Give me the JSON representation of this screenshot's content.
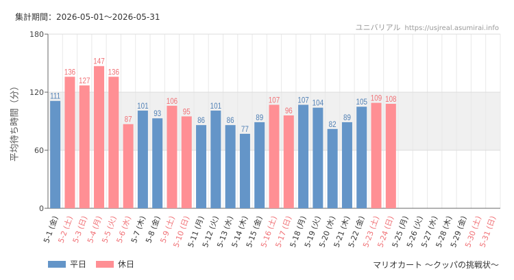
{
  "header": {
    "period": "集計期間：2026-05-01～2026-05-31",
    "site_name": "ユニバリアル",
    "site_url": "https://usjreal.asumirai.info"
  },
  "footer": {
    "attraction": "マリオカート ～クッパの挑戦状～"
  },
  "colors": {
    "weekday": "#6495c8",
    "holiday": "#ff8f94",
    "weekday_label": "#4f7fb4",
    "holiday_label": "#f07075",
    "axis_text": "#333333",
    "band": "#f0f0f0"
  },
  "chart_data": {
    "type": "bar",
    "ylabel": "平均待ち時間（分）",
    "ylim": [
      0,
      180
    ],
    "yticks": [
      0,
      60,
      120,
      180
    ],
    "band": [
      60,
      120
    ],
    "grid": true,
    "legend_position": "bottom-left",
    "series": [
      {
        "name": "平日",
        "key": "weekday"
      },
      {
        "name": "休日",
        "key": "holiday"
      }
    ],
    "categories": [
      "5-1 (金)",
      "5-2 (土)",
      "5-3 (日)",
      "5-4 (月)",
      "5-5 (火)",
      "5-6 (水)",
      "5-7 (木)",
      "5-8 (金)",
      "5-9 (土)",
      "5-10 (日)",
      "5-11 (月)",
      "5-12 (火)",
      "5-13 (水)",
      "5-14 (木)",
      "5-15 (金)",
      "5-16 (土)",
      "5-17 (日)",
      "5-18 (月)",
      "5-19 (火)",
      "5-20 (水)",
      "5-21 (木)",
      "5-22 (金)",
      "5-23 (土)",
      "5-24 (日)",
      "5-25 (月)",
      "5-26 (火)",
      "5-27 (水)",
      "5-28 (木)",
      "5-29 (金)",
      "5-30 (土)",
      "5-31 (日)"
    ],
    "values": [
      111,
      136,
      127,
      147,
      136,
      87,
      101,
      93,
      106,
      95,
      86,
      101,
      86,
      77,
      89,
      107,
      96,
      107,
      104,
      82,
      89,
      105,
      109,
      108,
      null,
      null,
      null,
      null,
      null,
      null,
      null
    ],
    "day_type": [
      "weekday",
      "holiday",
      "holiday",
      "holiday",
      "holiday",
      "holiday",
      "weekday",
      "weekday",
      "holiday",
      "holiday",
      "weekday",
      "weekday",
      "weekday",
      "weekday",
      "weekday",
      "holiday",
      "holiday",
      "weekday",
      "weekday",
      "weekday",
      "weekday",
      "weekday",
      "holiday",
      "holiday",
      "weekday",
      "weekday",
      "weekday",
      "weekday",
      "weekday",
      "holiday",
      "holiday"
    ]
  }
}
